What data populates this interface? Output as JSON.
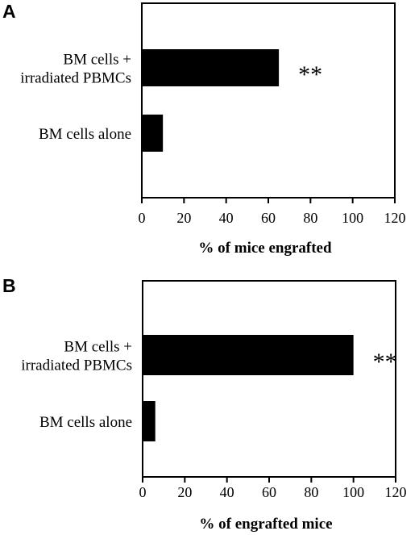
{
  "chart_data": [
    {
      "type": "bar",
      "orientation": "horizontal",
      "panel": "A",
      "categories": [
        "BM cells + irradiated PBMCs",
        "BM cells alone"
      ],
      "category_lines": [
        [
          "BM cells +",
          "irradiated PBMCs"
        ],
        [
          "BM cells alone"
        ]
      ],
      "values": [
        65,
        10
      ],
      "annotations": [
        "**",
        ""
      ],
      "xlabel": "% of mice engrafted",
      "xlim": [
        0,
        120
      ],
      "xticks": [
        "0",
        "20",
        "40",
        "60",
        "80",
        "100",
        "120"
      ],
      "grid": false,
      "bar_color": "#000000"
    },
    {
      "type": "bar",
      "orientation": "horizontal",
      "panel": "B",
      "categories": [
        "BM cells + irradiated PBMCs",
        "BM cells alone"
      ],
      "category_lines": [
        [
          "BM cells +",
          "irradiated PBMCs"
        ],
        [
          "BM cells alone"
        ]
      ],
      "values": [
        100,
        6
      ],
      "annotations": [
        "**",
        ""
      ],
      "xlabel": "% of engrafted mice",
      "xlim": [
        0,
        120
      ],
      "xticks": [
        "0",
        "20",
        "40",
        "60",
        "80",
        "100",
        "120"
      ],
      "grid": false,
      "bar_color": "#000000"
    }
  ]
}
